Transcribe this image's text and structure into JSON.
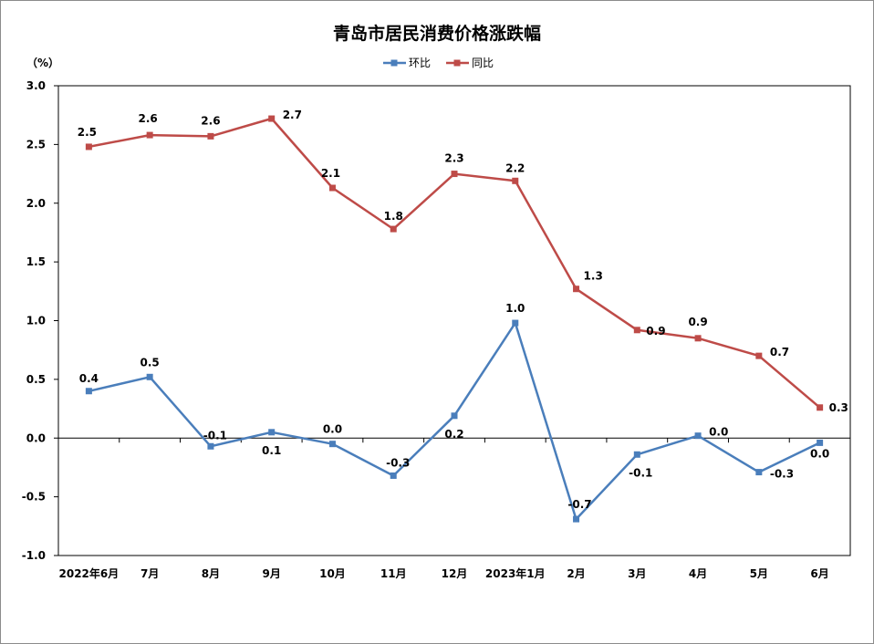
{
  "chart_data": {
    "type": "line",
    "title": "青岛市居民消费价格涨跌幅",
    "ylabel": "（%）",
    "xlabel": "",
    "ylim": [
      -1.0,
      3.0
    ],
    "ytick_step": 0.5,
    "yticks": [
      "3.0",
      "2.5",
      "2.0",
      "1.5",
      "1.0",
      "0.5",
      "0.0",
      "-0.5",
      "-1.0"
    ],
    "categories": [
      "2022年6月",
      "7月",
      "8月",
      "9月",
      "10月",
      "11月",
      "12月",
      "2023年1月",
      "2月",
      "3月",
      "4月",
      "5月",
      "6月"
    ],
    "legend_position": "top-center",
    "grid": false,
    "series": [
      {
        "name": "环比",
        "color": "#4a7ebb",
        "values": [
          0.4,
          0.52,
          -0.07,
          0.05,
          -0.05,
          -0.32,
          0.19,
          0.98,
          -0.69,
          -0.14,
          0.02,
          -0.29,
          -0.04
        ],
        "labels": [
          "0.4",
          "0.5",
          "-0.1",
          "0.1",
          "0.0",
          "-0.3",
          "0.2",
          "1.0",
          "-0.7",
          "-0.1",
          "0.0",
          "-0.3",
          "0.0"
        ]
      },
      {
        "name": "同比",
        "color": "#be4b48",
        "values": [
          2.48,
          2.58,
          2.57,
          2.72,
          2.13,
          1.78,
          2.25,
          2.19,
          1.27,
          0.92,
          0.85,
          0.7,
          0.26
        ],
        "labels": [
          "2.5",
          "2.6",
          "2.6",
          "2.7",
          "2.1",
          "1.8",
          "2.3",
          "2.2",
          "1.3",
          "0.9",
          "0.9",
          "0.7",
          "0.3"
        ]
      }
    ]
  }
}
